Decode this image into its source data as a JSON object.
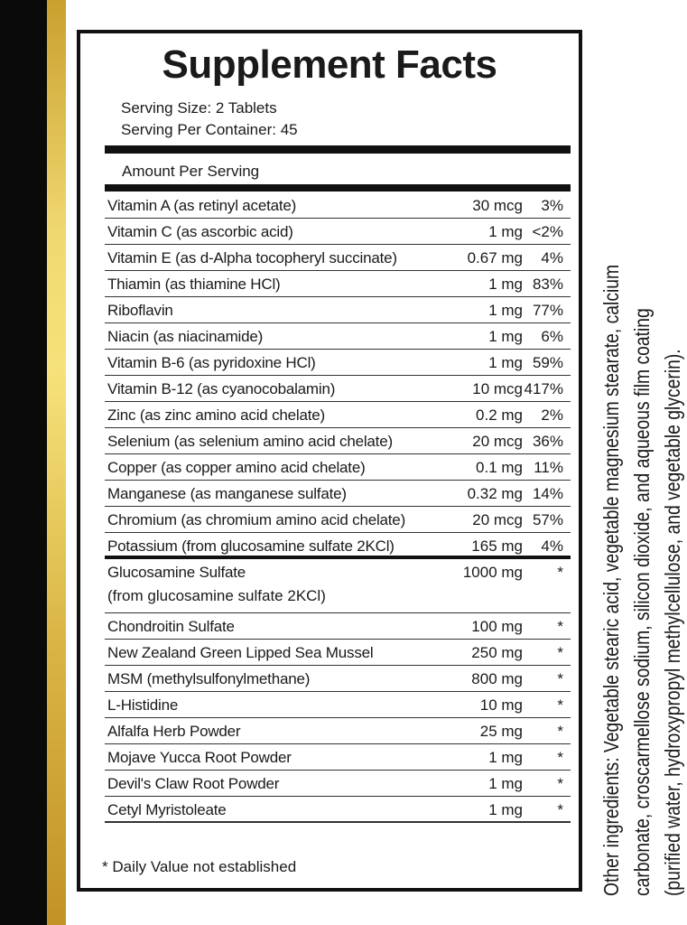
{
  "title": "Supplement Facts",
  "serving_size": "Serving Size: 2 Tablets",
  "servings_per_container": "Serving Per Container: 45",
  "amount_per_serving": "Amount Per Serving",
  "nutrients": [
    {
      "name": "Vitamin A (as retinyl acetate)",
      "amount": "30 mcg",
      "dv": "3%"
    },
    {
      "name": "Vitamin C (as ascorbic acid)",
      "amount": "1 mg",
      "dv": "<2%"
    },
    {
      "name": "Vitamin E (as d-Alpha tocopheryl succinate)",
      "amount": "0.67 mg",
      "dv": "4%"
    },
    {
      "name": "Thiamin (as thiamine HCl)",
      "amount": "1 mg",
      "dv": "83%"
    },
    {
      "name": "Riboflavin",
      "amount": "1 mg",
      "dv": "77%"
    },
    {
      "name": "Niacin (as niacinamide)",
      "amount": "1 mg",
      "dv": "6%"
    },
    {
      "name": "Vitamin B-6 (as pyridoxine HCl)",
      "amount": "1 mg",
      "dv": "59%"
    },
    {
      "name": "Vitamin B-12 (as cyanocobalamin)",
      "amount": "10 mcg",
      "dv": "417%"
    },
    {
      "name": "Zinc (as zinc amino acid chelate)",
      "amount": "0.2 mg",
      "dv": "2%"
    },
    {
      "name": "Selenium (as selenium amino acid chelate)",
      "amount": "20 mcg",
      "dv": "36%"
    },
    {
      "name": "Copper (as copper amino acid chelate)",
      "amount": "0.1 mg",
      "dv": "11%"
    },
    {
      "name": "Manganese (as manganese sulfate)",
      "amount": "0.32 mg",
      "dv": "14%"
    },
    {
      "name": "Chromium (as chromium amino acid chelate)",
      "amount": "20 mcg",
      "dv": "57%"
    },
    {
      "name": "Potassium (from glucosamine sulfate 2KCl)",
      "amount": "165 mg",
      "dv": "4%"
    }
  ],
  "glucosamine": {
    "name": "Glucosamine Sulfate",
    "name2": "(from glucosamine sulfate 2KCl)",
    "amount": "1000 mg",
    "dv": "*"
  },
  "others": [
    {
      "name": "Chondroitin Sulfate",
      "amount": "100 mg",
      "dv": "*"
    },
    {
      "name": "New Zealand Green Lipped Sea Mussel",
      "amount": "250 mg",
      "dv": "*"
    },
    {
      "name": "MSM (methylsulfonylmethane)",
      "amount": "800 mg",
      "dv": "*"
    },
    {
      "name": "L-Histidine",
      "amount": "10 mg",
      "dv": "*"
    },
    {
      "name": "Alfalfa Herb Powder",
      "amount": "25 mg",
      "dv": "*"
    },
    {
      "name": "Mojave Yucca Root Powder",
      "amount": "1 mg",
      "dv": "*"
    },
    {
      "name": "Devil's Claw Root Powder",
      "amount": "1 mg",
      "dv": "*"
    },
    {
      "name": "Cetyl Myristoleate",
      "amount": "1 mg",
      "dv": "*"
    }
  ],
  "footnote": "* Daily Value not established",
  "other_ingredients": [
    "Other ingredients: Vegetable stearic acid, vegetable magnesium stearate, calcium",
    "carbonate, croscarmellose sodium, silicon dioxide, and aqueous film coating",
    "(purified water, hydroxypropyl methylcellulose, and vegetable glycerin)."
  ],
  "colors": {
    "black_strip": "#0a0a0a",
    "gold_strip": "#e8c95a"
  }
}
